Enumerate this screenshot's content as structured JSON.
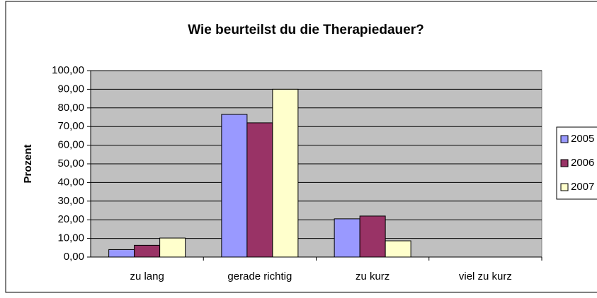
{
  "chart_data": {
    "type": "bar",
    "title": "Wie beurteilst du die Therapiedauer?",
    "y_label": "Prozent",
    "categories": [
      "zu lang",
      "gerade richtig",
      "zu kurz",
      "viel zu kurz"
    ],
    "series": [
      {
        "name": "2005",
        "color": "#9999ff",
        "values": [
          4,
          76.5,
          20.5,
          0
        ]
      },
      {
        "name": "2006",
        "color": "#993366",
        "values": [
          6.3,
          72,
          22,
          0
        ]
      },
      {
        "name": "2007",
        "color": "#ffffcc",
        "values": [
          10.2,
          90,
          8.7,
          0
        ]
      }
    ],
    "ylim": [
      0,
      100
    ],
    "yticks": [
      {
        "value": 0,
        "label": "0,00"
      },
      {
        "value": 10,
        "label": "10,00"
      },
      {
        "value": 20,
        "label": "20,00"
      },
      {
        "value": 30,
        "label": "30,00"
      },
      {
        "value": 40,
        "label": "40,00"
      },
      {
        "value": 50,
        "label": "50,00"
      },
      {
        "value": 60,
        "label": "60,00"
      },
      {
        "value": 70,
        "label": "70,00"
      },
      {
        "value": 80,
        "label": "80,00"
      },
      {
        "value": 90,
        "label": "90,00"
      },
      {
        "value": 100,
        "label": "100,00"
      }
    ],
    "grid": true,
    "legend": "right"
  }
}
